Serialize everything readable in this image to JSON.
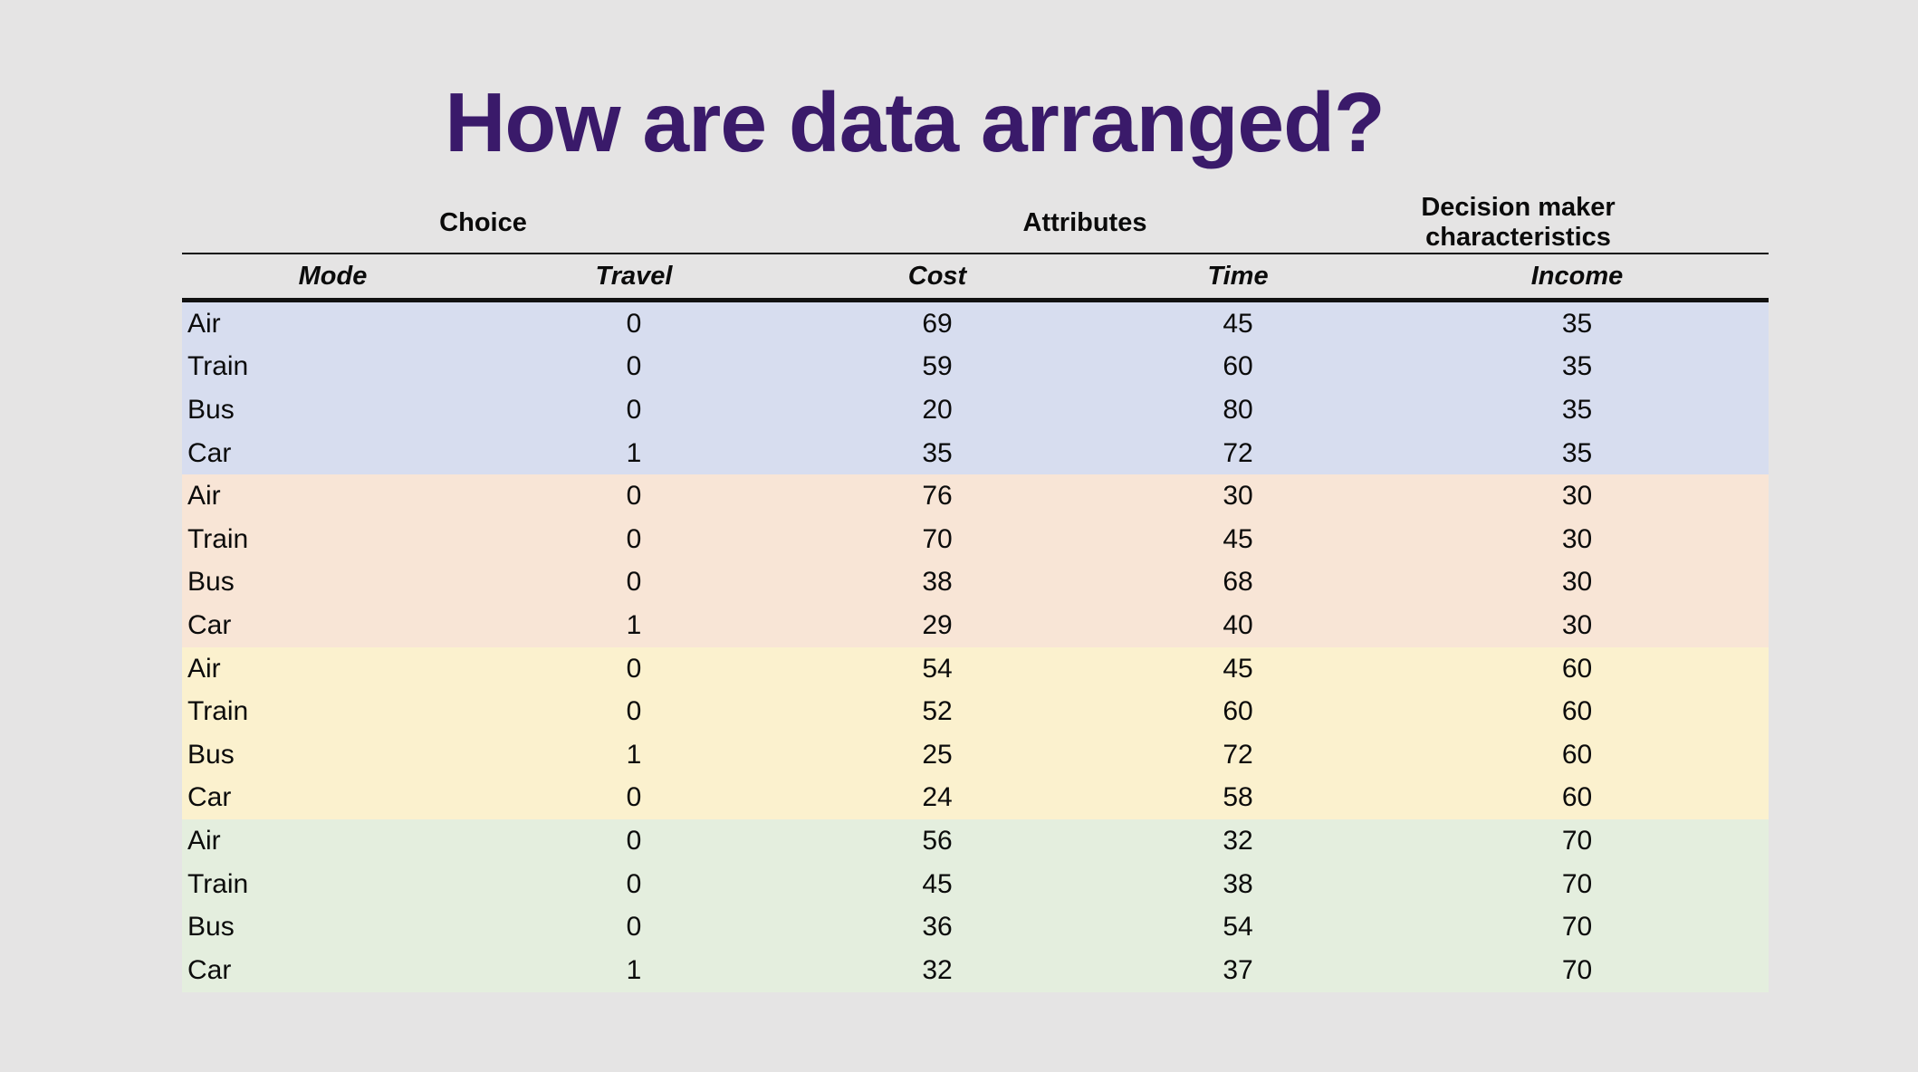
{
  "slide": {
    "title": "How are data arranged?",
    "title_color": "#3A1A6A",
    "background": "#E5E4E4"
  },
  "table": {
    "group_headers": [
      {
        "label": "Choice",
        "span": 2
      },
      {
        "label": "Attributes",
        "span": 2
      },
      {
        "label": "Decision maker characteristics",
        "span": 1
      }
    ],
    "columns": [
      "Mode",
      "Travel",
      "Cost",
      "Time",
      "Income"
    ],
    "blocks": [
      {
        "color": "#D7DDEF",
        "rows": [
          [
            "Air",
            "0",
            "69",
            "45",
            "35"
          ],
          [
            "Train",
            "0",
            "59",
            "60",
            "35"
          ],
          [
            "Bus",
            "0",
            "20",
            "80",
            "35"
          ],
          [
            "Car",
            "1",
            "35",
            "72",
            "35"
          ]
        ]
      },
      {
        "color": "#F8E5D6",
        "rows": [
          [
            "Air",
            "0",
            "76",
            "30",
            "30"
          ],
          [
            "Train",
            "0",
            "70",
            "45",
            "30"
          ],
          [
            "Bus",
            "0",
            "38",
            "68",
            "30"
          ],
          [
            "Car",
            "1",
            "29",
            "40",
            "30"
          ]
        ]
      },
      {
        "color": "#FBF1CE",
        "rows": [
          [
            "Air",
            "0",
            "54",
            "45",
            "60"
          ],
          [
            "Train",
            "0",
            "52",
            "60",
            "60"
          ],
          [
            "Bus",
            "1",
            "25",
            "72",
            "60"
          ],
          [
            "Car",
            "0",
            "24",
            "58",
            "60"
          ]
        ]
      },
      {
        "color": "#E4EEDE",
        "rows": [
          [
            "Air",
            "0",
            "56",
            "32",
            "70"
          ],
          [
            "Train",
            "0",
            "45",
            "38",
            "70"
          ],
          [
            "Bus",
            "0",
            "36",
            "54",
            "70"
          ],
          [
            "Car",
            "1",
            "32",
            "37",
            "70"
          ]
        ]
      }
    ]
  }
}
